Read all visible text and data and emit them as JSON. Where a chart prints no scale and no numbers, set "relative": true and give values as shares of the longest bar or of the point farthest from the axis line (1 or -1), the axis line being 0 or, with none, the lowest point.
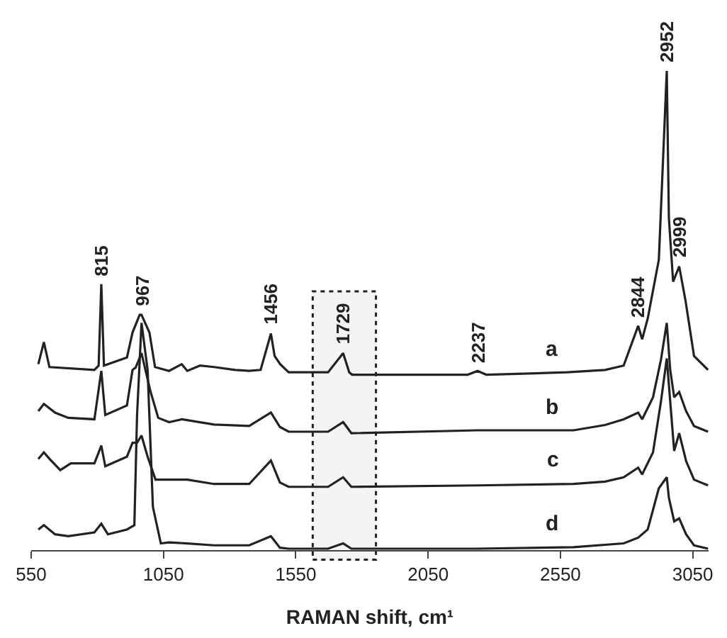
{
  "chart_data": {
    "type": "line",
    "relative": true,
    "xlabel": "RAMAN shift, cm¹",
    "xlim": [
      550,
      3110
    ],
    "xticks": [
      550,
      1050,
      1550,
      2050,
      2550,
      3050
    ],
    "legend": false,
    "marker": "none",
    "line_style": "solid",
    "series": [
      {
        "name": "a",
        "color": "#222222",
        "x": [
          577,
          598,
          619,
          789,
          805,
          815,
          825,
          912,
          933,
          960,
          967,
          997,
          1018,
          1071,
          1119,
          1140,
          1188,
          1241,
          1321,
          1374,
          1417,
          1456,
          1470,
          1491,
          1523,
          1672,
          1729,
          1752,
          1763,
          2200,
          2237,
          2270,
          2576,
          2719,
          2789,
          2844,
          2859,
          2880,
          2922,
          2952,
          2960,
          2976,
          2999,
          3023,
          3055,
          3108
        ],
        "values": [
          0.388,
          0.434,
          0.382,
          0.376,
          0.385,
          0.555,
          0.385,
          0.402,
          0.454,
          0.491,
          0.491,
          0.454,
          0.382,
          0.374,
          0.388,
          0.374,
          0.385,
          0.382,
          0.376,
          0.374,
          0.376,
          0.452,
          0.405,
          0.388,
          0.371,
          0.371,
          0.411,
          0.371,
          0.366,
          0.366,
          0.374,
          0.366,
          0.371,
          0.376,
          0.385,
          0.468,
          0.44,
          0.483,
          0.606,
          1.0,
          0.693,
          0.56,
          0.592,
          0.52,
          0.405,
          0.376
        ]
      },
      {
        "name": "b",
        "color": "#222222",
        "x": [
          577,
          598,
          640,
          690,
          789,
          815,
          830,
          912,
          933,
          945,
          967,
          1000,
          1030,
          1071,
          1119,
          1241,
          1374,
          1456,
          1490,
          1523,
          1672,
          1729,
          1760,
          2237,
          2600,
          2719,
          2789,
          2844,
          2859,
          2900,
          2930,
          2952,
          2965,
          2980,
          2999,
          3025,
          3055,
          3108
        ],
        "values": [
          0.29,
          0.305,
          0.287,
          0.276,
          0.273,
          0.374,
          0.282,
          0.302,
          0.376,
          0.381,
          0.411,
          0.333,
          0.276,
          0.267,
          0.273,
          0.262,
          0.259,
          0.287,
          0.257,
          0.247,
          0.247,
          0.267,
          0.244,
          0.25,
          0.25,
          0.261,
          0.273,
          0.287,
          0.273,
          0.319,
          0.397,
          0.474,
          0.376,
          0.319,
          0.33,
          0.29,
          0.259,
          0.247
        ]
      },
      {
        "name": "c",
        "color": "#222222",
        "x": [
          577,
          598,
          620,
          660,
          700,
          789,
          815,
          830,
          912,
          933,
          950,
          967,
          990,
          1020,
          1071,
          1140,
          1241,
          1374,
          1456,
          1490,
          1523,
          1672,
          1729,
          1760,
          2237,
          2600,
          2719,
          2789,
          2844,
          2859,
          2900,
          2930,
          2952,
          2980,
          2999,
          3025,
          3055,
          3108
        ],
        "values": [
          0.19,
          0.204,
          0.19,
          0.167,
          0.181,
          0.181,
          0.218,
          0.175,
          0.195,
          0.224,
          0.224,
          0.239,
          0.195,
          0.147,
          0.147,
          0.147,
          0.138,
          0.138,
          0.187,
          0.141,
          0.132,
          0.132,
          0.152,
          0.132,
          0.135,
          0.138,
          0.143,
          0.152,
          0.172,
          0.158,
          0.204,
          0.31,
          0.4,
          0.207,
          0.244,
          0.186,
          0.147,
          0.135
        ]
      },
      {
        "name": "d",
        "color": "#222222",
        "x": [
          577,
          598,
          640,
          690,
          789,
          815,
          840,
          912,
          940,
          950,
          967,
          990,
          1010,
          1040,
          1071,
          1140,
          1241,
          1374,
          1456,
          1490,
          1523,
          1672,
          1729,
          1760,
          2237,
          2600,
          2789,
          2844,
          2880,
          2922,
          2952,
          2960,
          2980,
          2999,
          3025,
          3055,
          3108
        ],
        "values": [
          0.043,
          0.052,
          0.033,
          0.029,
          0.037,
          0.055,
          0.033,
          0.043,
          0.052,
          0.28,
          0.474,
          0.376,
          0.09,
          0.014,
          0.016,
          0.014,
          0.01,
          0.01,
          0.029,
          0.005,
          0.003,
          0.003,
          0.014,
          0.003,
          0.003,
          0.006,
          0.014,
          0.026,
          0.043,
          0.129,
          0.152,
          0.109,
          0.06,
          0.066,
          0.033,
          0.01,
          0.003
        ]
      }
    ],
    "annotations": [
      {
        "text": "815",
        "x": 815,
        "y": 0.555
      },
      {
        "text": "967",
        "x": 967,
        "y": 0.491
      },
      {
        "text": "1456",
        "x": 1456,
        "y": 0.452
      },
      {
        "text": "1729",
        "x": 1729,
        "y": 0.411
      },
      {
        "text": "2237",
        "x": 2237,
        "y": 0.374
      },
      {
        "text": "2844",
        "x": 2844,
        "y": 0.468
      },
      {
        "text": "2952",
        "x": 2952,
        "y": 1.0
      },
      {
        "text": "2999",
        "x": 2999,
        "y": 0.592
      }
    ],
    "bands": [
      {
        "axis": "x",
        "from": 1614,
        "to": 1853,
        "color": "#222222"
      }
    ]
  }
}
